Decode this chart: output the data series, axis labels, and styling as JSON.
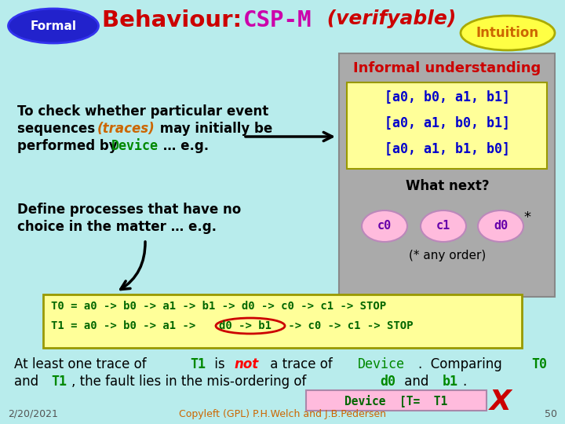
{
  "bg_color": "#b8ecec",
  "formal_label": "Formal",
  "formal_ellipse_color": "#2222cc",
  "intuition_label": "Intuition",
  "intuition_ellipse_color": "#ffff44",
  "intuition_text_color": "#cc6600",
  "title_behaviour": "Behaviour: ",
  "title_cspm": "CSP-M",
  "title_verifyable": " (verifyable)",
  "title_color": "#cc0000",
  "cspm_color": "#cc00aa",
  "informal_title": "Informal understanding",
  "informal_title_color": "#cc0000",
  "traces": [
    "[a0, b0, a1, b1]",
    "[a0, a1, b0, b1]",
    "[a0, a1, b1, b0]"
  ],
  "traces_color": "#0000cc",
  "what_next": "What next?",
  "circles": [
    "c0",
    "c1",
    "d0"
  ],
  "circle_color": "#ffbbdd",
  "circle_text_color": "#6600aa",
  "any_order": "(* any order)",
  "gray_box_color": "#aaaaaa",
  "yellow_box_color": "#ffff99",
  "code_box_color": "#ffff99",
  "device_box_color": "#ffbbdd",
  "device_check": "Device  [T=  T1",
  "footer_date": "2/20/2021",
  "footer_copy": "Copyleft (GPL) P.H.Welch and J.B.Pedersen",
  "footer_page": "50",
  "code_color": "#006600",
  "red_oval_color": "#cc0000"
}
